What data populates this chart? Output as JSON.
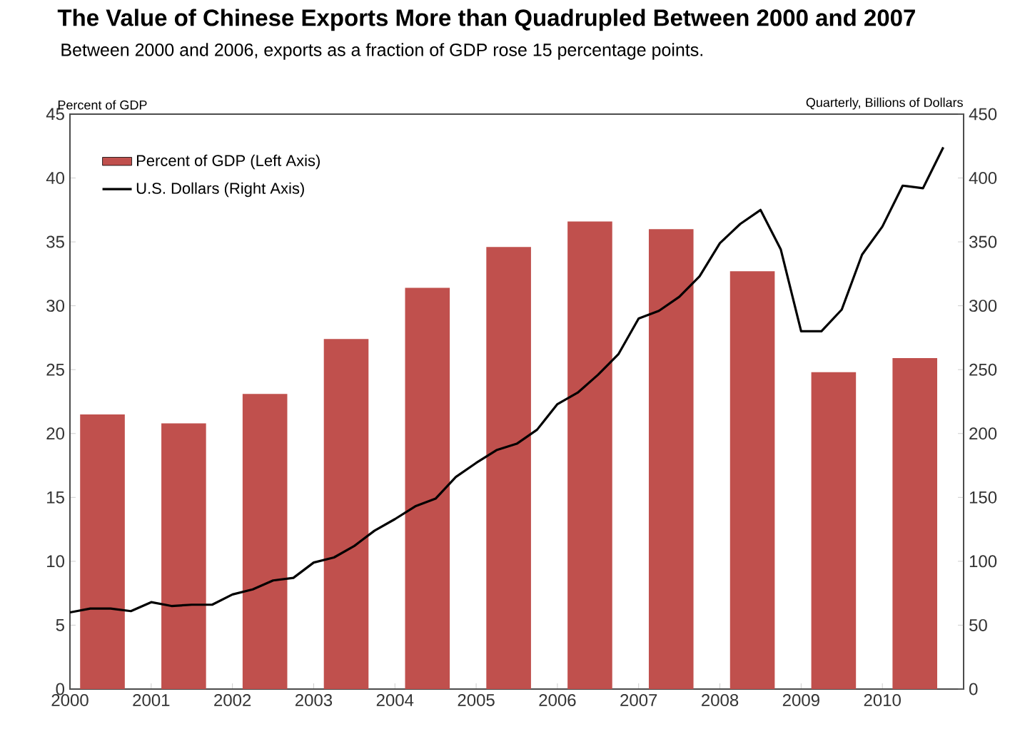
{
  "chart_data": {
    "type": "bar",
    "title": "The Value of Chinese Exports More than Quadrupled Between 2000 and 2007",
    "subtitle": "Between 2000 and 2006, exports as a fraction of GDP rose 15 percentage points.",
    "ylabel": "Percent of GDP",
    "y2label": "Quarterly, Billions of Dollars",
    "xlim": [
      2000,
      2011
    ],
    "xticks": [
      2000,
      2001,
      2002,
      2003,
      2004,
      2005,
      2006,
      2007,
      2008,
      2009,
      2010
    ],
    "ylim": [
      0,
      45
    ],
    "yticks": [
      0,
      5,
      10,
      15,
      20,
      25,
      30,
      35,
      40,
      45
    ],
    "y2lim": [
      0,
      450
    ],
    "y2ticks": [
      0,
      50,
      100,
      150,
      200,
      250,
      300,
      350,
      400,
      450
    ],
    "legend": "top left",
    "series": [
      {
        "name": "Percent of GDP (Left Axis)",
        "color": "#c0504d",
        "x": [
          2000.4,
          2001.4,
          2002.4,
          2003.4,
          2004.4,
          2005.4,
          2006.4,
          2007.4,
          2008.4,
          2009.4,
          2010.4
        ],
        "values": [
          21.5,
          20.8,
          23.1,
          27.4,
          31.4,
          34.6,
          36.6,
          36.0,
          32.7,
          24.8,
          25.9
        ]
      },
      {
        "name": "U.S. Dollars (Right Axis)",
        "type": "line",
        "axis": "y2",
        "color": "#000000",
        "x": [
          2000,
          2000.25,
          2000.5,
          2000.75,
          2001,
          2001.25,
          2001.5,
          2001.75,
          2002,
          2002.25,
          2002.5,
          2002.75,
          2003,
          2003.25,
          2003.5,
          2003.75,
          2004,
          2004.25,
          2004.5,
          2004.75,
          2005,
          2005.25,
          2005.5,
          2005.75,
          2006,
          2006.25,
          2006.5,
          2006.75,
          2007,
          2007.25,
          2007.5,
          2007.75,
          2008,
          2008.25,
          2008.5,
          2008.75,
          2009,
          2009.25,
          2009.5,
          2009.75,
          2010,
          2010.25,
          2010.5,
          2010.75
        ],
        "values": [
          60,
          63,
          63,
          61,
          68,
          65,
          66,
          66,
          74,
          78,
          85,
          87,
          99,
          103,
          112,
          124,
          133,
          143,
          149,
          166,
          177,
          187,
          192,
          203,
          223,
          232,
          246,
          262,
          290,
          296,
          307,
          323,
          349,
          364,
          375,
          344,
          280,
          280,
          297,
          340,
          362,
          394,
          392,
          424
        ]
      }
    ]
  }
}
